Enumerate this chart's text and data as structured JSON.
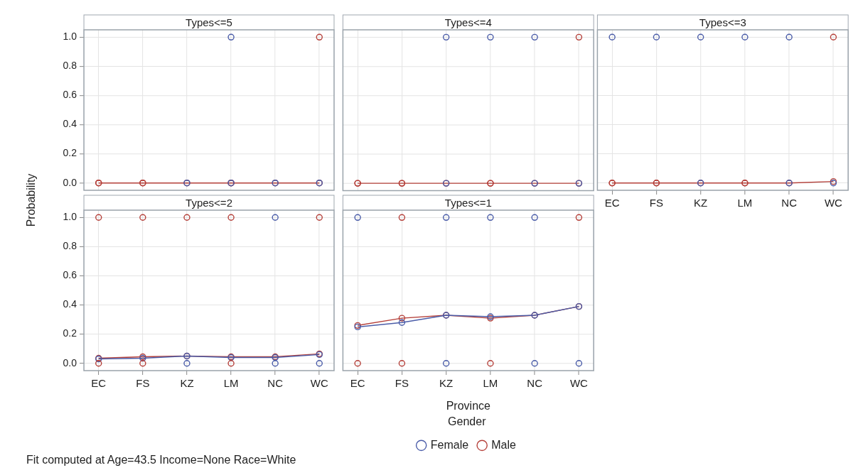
{
  "chart_data": [
    {
      "type": "line",
      "title": "Types<=5",
      "ylabel": "Probability",
      "categories": [
        "EC",
        "FS",
        "KZ",
        "LM",
        "NC",
        "WC"
      ],
      "ylim": [
        -0.05,
        1.05
      ],
      "yticks": [
        {
          "value": 0,
          "label": "0.0"
        },
        {
          "value": 0.2,
          "label": "0.2"
        },
        {
          "value": 0.4,
          "label": "0.4"
        },
        {
          "value": 0.6,
          "label": "0.6"
        },
        {
          "value": 0.8,
          "label": "0.8"
        },
        {
          "value": 1,
          "label": "1.0"
        }
      ],
      "grid": true,
      "marker": "circle",
      "tick_labels": "y",
      "series": [
        {
          "type": "scatter",
          "color": "#4a5ca8",
          "x": [
            "KZ",
            "LM",
            "LM",
            "NC",
            "WC"
          ],
          "values": [
            0,
            0,
            1,
            0,
            0
          ]
        },
        {
          "type": "scatter",
          "color": "#b5403a",
          "x": [
            "EC",
            "FS",
            "LM",
            "WC"
          ],
          "values": [
            0,
            0,
            0,
            1
          ]
        },
        {
          "color": "#b5403a",
          "values": [
            0,
            0,
            0,
            0,
            0,
            0
          ]
        }
      ]
    },
    {
      "type": "line",
      "title": "Types<=4",
      "categories": [
        "EC",
        "FS",
        "KZ",
        "LM",
        "NC",
        "WC"
      ],
      "ylim": [
        -0.05,
        1.05
      ],
      "yticks": [
        0,
        0.2,
        0.4,
        0.6,
        0.8,
        1
      ],
      "grid": true,
      "marker": "circle",
      "tick_labels": false,
      "series": [
        {
          "type": "scatter",
          "color": "#4a5ca8",
          "x": [
            "KZ",
            "KZ",
            "LM",
            "NC",
            "NC",
            "WC"
          ],
          "values": [
            0,
            1,
            1,
            0,
            1,
            0
          ]
        },
        {
          "type": "scatter",
          "color": "#b5403a",
          "x": [
            "EC",
            "FS",
            "LM",
            "WC"
          ],
          "values": [
            0,
            0,
            0,
            1
          ]
        },
        {
          "color": "#b5403a",
          "values": [
            0,
            0,
            0,
            0,
            0,
            0
          ]
        }
      ]
    },
    {
      "type": "line",
      "title": "Types<=3",
      "categories": [
        "EC",
        "FS",
        "KZ",
        "LM",
        "NC",
        "WC"
      ],
      "ylim": [
        -0.05,
        1.05
      ],
      "yticks": [
        0,
        0.2,
        0.4,
        0.6,
        0.8,
        1
      ],
      "grid": true,
      "marker": "circle",
      "tick_labels": "x",
      "series": [
        {
          "type": "scatter",
          "color": "#4a5ca8",
          "x": [
            "EC",
            "FS",
            "KZ",
            "KZ",
            "LM",
            "NC",
            "NC",
            "WC"
          ],
          "values": [
            1,
            1,
            0,
            1,
            1,
            0,
            1,
            0
          ]
        },
        {
          "type": "scatter",
          "color": "#b5403a",
          "x": [
            "EC",
            "FS",
            "LM",
            "WC"
          ],
          "values": [
            0,
            0,
            0,
            1
          ]
        },
        {
          "color": "#b5403a",
          "values": [
            0,
            0,
            0,
            0,
            0,
            0.01
          ]
        }
      ]
    },
    {
      "type": "line",
      "title": "Types<=2",
      "categories": [
        "EC",
        "FS",
        "KZ",
        "LM",
        "NC",
        "WC"
      ],
      "ylim": [
        -0.05,
        1.05
      ],
      "yticks": [
        {
          "value": 0,
          "label": "0.0"
        },
        {
          "value": 0.2,
          "label": "0.2"
        },
        {
          "value": 0.4,
          "label": "0.4"
        },
        {
          "value": 0.6,
          "label": "0.6"
        },
        {
          "value": 0.8,
          "label": "0.8"
        },
        {
          "value": 1,
          "label": "1.0"
        }
      ],
      "grid": true,
      "marker": "circle",
      "series": [
        {
          "type": "scatter",
          "color": "#4a5ca8",
          "x": [
            "KZ",
            "NC",
            "NC",
            "WC"
          ],
          "values": [
            0,
            0,
            1,
            0
          ]
        },
        {
          "type": "scatter",
          "color": "#b5403a",
          "x": [
            "EC",
            "EC",
            "FS",
            "FS",
            "KZ",
            "LM",
            "LM",
            "WC"
          ],
          "values": [
            0,
            1,
            0,
            1,
            1,
            0,
            1,
            1
          ]
        },
        {
          "color": "#4a5ca8",
          "values": [
            0.03,
            0.035,
            0.05,
            0.04,
            0.04,
            0.06
          ]
        },
        {
          "color": "#b5403a",
          "values": [
            0.035,
            0.045,
            0.05,
            0.045,
            0.045,
            0.065
          ]
        }
      ]
    },
    {
      "type": "line",
      "title": "Types<=1",
      "xlabel": "Province",
      "legend": "bottom",
      "legend_title": "Gender",
      "annotations": [
        "Fit computed at Age=43.5 Income=None Race=White"
      ],
      "categories": [
        "EC",
        "FS",
        "KZ",
        "LM",
        "NC",
        "WC"
      ],
      "ylim": [
        -0.05,
        1.05
      ],
      "yticks": [
        0,
        0.2,
        0.4,
        0.6,
        0.8,
        1
      ],
      "grid": true,
      "marker": "circle",
      "tick_labels": "x",
      "series": [
        {
          "type": "scatter",
          "color": "#4a5ca8",
          "x": [
            "EC",
            "KZ",
            "KZ",
            "LM",
            "NC",
            "NC",
            "WC"
          ],
          "values": [
            1,
            0,
            1,
            1,
            0,
            1,
            0
          ]
        },
        {
          "type": "scatter",
          "color": "#b5403a",
          "x": [
            "EC",
            "FS",
            "FS",
            "LM",
            "WC"
          ],
          "values": [
            0,
            0,
            1,
            0,
            1
          ]
        },
        {
          "name": "Female",
          "color": "#4a5ca8",
          "values": [
            0.25,
            0.28,
            0.33,
            0.32,
            0.33,
            0.39
          ]
        },
        {
          "name": "Male",
          "color": "#b5403a",
          "values": [
            0.26,
            0.31,
            0.33,
            0.31,
            0.33,
            0.39
          ]
        }
      ]
    }
  ]
}
